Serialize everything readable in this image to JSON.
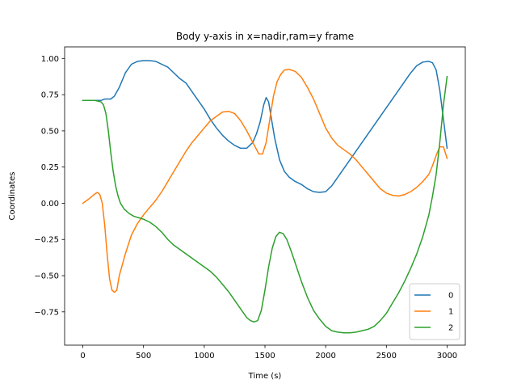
{
  "chart_data": {
    "type": "line",
    "title": "Body y-axis in x=nadir,ram=y frame",
    "xlabel": "Time (s)",
    "ylabel": "Coordinates",
    "xlim": [
      -150,
      3150
    ],
    "ylim": [
      -0.98,
      1.08
    ],
    "xticks": [
      0,
      500,
      1000,
      1500,
      2000,
      2500,
      3000
    ],
    "yticks": [
      -0.75,
      -0.5,
      -0.25,
      0.0,
      0.25,
      0.5,
      0.75,
      1.0
    ],
    "xtick_labels": [
      "0",
      "500",
      "1000",
      "1500",
      "2000",
      "2500",
      "3000"
    ],
    "ytick_labels": [
      "−0.75",
      "−0.50",
      "−0.25",
      "0.00",
      "0.25",
      "0.50",
      "0.75",
      "1.00"
    ],
    "grid": false,
    "legend_position": "lower-right",
    "series": [
      {
        "name": "0",
        "color": "#1f77b4",
        "x": [
          0,
          100,
          150,
          180,
          200,
          230,
          260,
          300,
          350,
          400,
          450,
          500,
          550,
          600,
          650,
          700,
          750,
          800,
          850,
          900,
          950,
          1000,
          1050,
          1100,
          1150,
          1200,
          1250,
          1300,
          1350,
          1400,
          1430,
          1460,
          1490,
          1510,
          1530,
          1550,
          1580,
          1620,
          1660,
          1700,
          1750,
          1800,
          1850,
          1900,
          1950,
          2000,
          2050,
          2100,
          2150,
          2200,
          2250,
          2300,
          2350,
          2400,
          2450,
          2500,
          2550,
          2600,
          2650,
          2700,
          2750,
          2800,
          2850,
          2880,
          2910,
          2940,
          2970,
          3000
        ],
        "values": [
          0.71,
          0.71,
          0.71,
          0.72,
          0.72,
          0.72,
          0.74,
          0.8,
          0.9,
          0.96,
          0.98,
          0.985,
          0.985,
          0.98,
          0.96,
          0.94,
          0.9,
          0.86,
          0.83,
          0.77,
          0.71,
          0.65,
          0.58,
          0.52,
          0.47,
          0.43,
          0.4,
          0.38,
          0.38,
          0.42,
          0.48,
          0.56,
          0.68,
          0.73,
          0.7,
          0.6,
          0.45,
          0.3,
          0.22,
          0.18,
          0.15,
          0.13,
          0.1,
          0.08,
          0.075,
          0.08,
          0.12,
          0.18,
          0.24,
          0.3,
          0.36,
          0.42,
          0.48,
          0.54,
          0.6,
          0.66,
          0.72,
          0.78,
          0.84,
          0.9,
          0.95,
          0.975,
          0.98,
          0.97,
          0.92,
          0.78,
          0.58,
          0.38
        ]
      },
      {
        "name": "1",
        "color": "#ff7f0e",
        "x": [
          0,
          50,
          100,
          120,
          140,
          160,
          180,
          200,
          220,
          240,
          260,
          280,
          300,
          350,
          400,
          450,
          500,
          550,
          600,
          650,
          700,
          750,
          800,
          850,
          900,
          950,
          1000,
          1050,
          1100,
          1150,
          1200,
          1250,
          1300,
          1350,
          1400,
          1450,
          1480,
          1510,
          1540,
          1570,
          1600,
          1630,
          1660,
          1700,
          1750,
          1800,
          1850,
          1900,
          1950,
          2000,
          2050,
          2100,
          2150,
          2200,
          2250,
          2300,
          2350,
          2400,
          2450,
          2500,
          2550,
          2600,
          2650,
          2700,
          2750,
          2800,
          2850,
          2880,
          2910,
          2940,
          2970,
          3000
        ],
        "values": [
          0.0,
          0.03,
          0.065,
          0.075,
          0.06,
          0.0,
          -0.15,
          -0.35,
          -0.52,
          -0.6,
          -0.615,
          -0.6,
          -0.5,
          -0.35,
          -0.22,
          -0.14,
          -0.08,
          -0.03,
          0.02,
          0.08,
          0.15,
          0.22,
          0.29,
          0.36,
          0.42,
          0.47,
          0.52,
          0.57,
          0.6,
          0.63,
          0.635,
          0.62,
          0.57,
          0.5,
          0.42,
          0.34,
          0.34,
          0.42,
          0.58,
          0.74,
          0.84,
          0.89,
          0.92,
          0.925,
          0.91,
          0.87,
          0.8,
          0.72,
          0.62,
          0.52,
          0.45,
          0.4,
          0.37,
          0.34,
          0.3,
          0.25,
          0.2,
          0.15,
          0.1,
          0.07,
          0.055,
          0.05,
          0.06,
          0.08,
          0.11,
          0.15,
          0.2,
          0.26,
          0.33,
          0.39,
          0.39,
          0.31
        ]
      },
      {
        "name": "2",
        "color": "#2ca02c",
        "x": [
          0,
          100,
          150,
          170,
          190,
          210,
          230,
          250,
          270,
          290,
          310,
          340,
          380,
          420,
          460,
          500,
          550,
          600,
          650,
          700,
          750,
          800,
          850,
          900,
          950,
          1000,
          1050,
          1100,
          1150,
          1200,
          1250,
          1300,
          1350,
          1380,
          1410,
          1440,
          1470,
          1500,
          1530,
          1560,
          1590,
          1620,
          1650,
          1680,
          1720,
          1760,
          1800,
          1850,
          1900,
          1950,
          2000,
          2050,
          2100,
          2150,
          2200,
          2250,
          2300,
          2350,
          2400,
          2450,
          2500,
          2550,
          2600,
          2650,
          2700,
          2750,
          2800,
          2850,
          2880,
          2910,
          2940,
          2970,
          3000
        ],
        "values": [
          0.71,
          0.71,
          0.7,
          0.68,
          0.62,
          0.5,
          0.35,
          0.22,
          0.12,
          0.05,
          0.0,
          -0.04,
          -0.07,
          -0.09,
          -0.1,
          -0.11,
          -0.13,
          -0.16,
          -0.2,
          -0.25,
          -0.29,
          -0.32,
          -0.35,
          -0.38,
          -0.41,
          -0.44,
          -0.47,
          -0.51,
          -0.56,
          -0.61,
          -0.67,
          -0.73,
          -0.79,
          -0.81,
          -0.82,
          -0.81,
          -0.74,
          -0.6,
          -0.44,
          -0.31,
          -0.23,
          -0.2,
          -0.21,
          -0.25,
          -0.34,
          -0.44,
          -0.54,
          -0.65,
          -0.74,
          -0.8,
          -0.85,
          -0.88,
          -0.89,
          -0.895,
          -0.895,
          -0.89,
          -0.88,
          -0.87,
          -0.85,
          -0.81,
          -0.76,
          -0.69,
          -0.62,
          -0.54,
          -0.45,
          -0.35,
          -0.23,
          -0.08,
          0.05,
          0.2,
          0.42,
          0.68,
          0.875
        ]
      }
    ]
  }
}
